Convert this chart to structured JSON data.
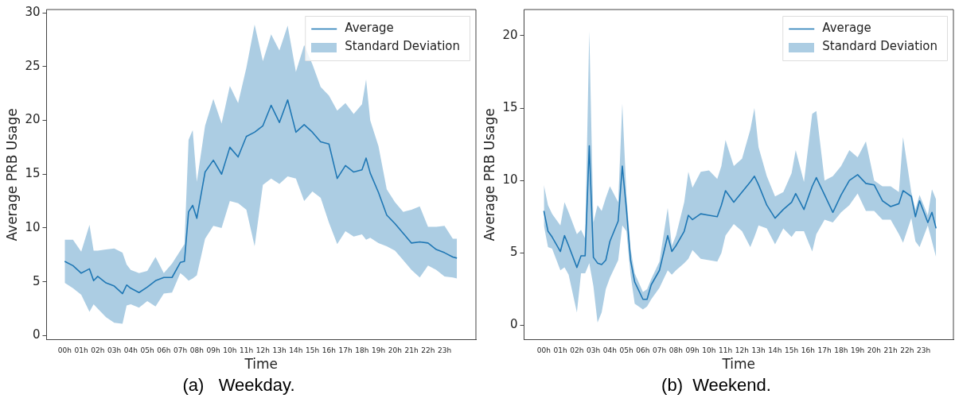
{
  "chart_data": [
    {
      "type": "line",
      "title": "(a)   Weekday.",
      "xlabel": "Time",
      "ylabel": "Average PRB Usage",
      "x": [
        0,
        0.5,
        1,
        1.5,
        1.75,
        2,
        2.5,
        3,
        3.5,
        3.75,
        4,
        4.5,
        5,
        5.5,
        6,
        6.5,
        7,
        7.25,
        7.5,
        7.75,
        8,
        8.5,
        9,
        9.5,
        10,
        10.5,
        11,
        11.5,
        12,
        12.5,
        13,
        13.5,
        14,
        14.5,
        15,
        15.5,
        16,
        16.5,
        17,
        17.5,
        18,
        18.25,
        18.5,
        19,
        19.5,
        20,
        20.5,
        21,
        21.5,
        22,
        22.5,
        23,
        23.5,
        23.75
      ],
      "series": [
        {
          "name": "Average",
          "color": "#1f77b4",
          "values": [
            6.9,
            6.5,
            5.8,
            6.2,
            5.1,
            5.5,
            4.9,
            4.6,
            3.9,
            4.7,
            4.4,
            4.0,
            4.5,
            5.1,
            5.4,
            5.4,
            6.8,
            6.9,
            11.5,
            12.1,
            10.9,
            15.2,
            16.3,
            15.0,
            17.5,
            16.6,
            18.5,
            18.9,
            19.5,
            21.4,
            19.8,
            21.9,
            18.9,
            19.6,
            18.9,
            18.0,
            17.8,
            14.6,
            15.8,
            15.2,
            15.4,
            16.5,
            15.1,
            13.3,
            11.2,
            10.4,
            9.5,
            8.6,
            8.7,
            8.6,
            8.0,
            7.7,
            7.3,
            7.2
          ],
          "lower": [
            4.9,
            4.4,
            3.8,
            2.2,
            2.9,
            2.5,
            1.7,
            1.2,
            1.1,
            2.8,
            2.9,
            2.6,
            3.2,
            2.7,
            3.9,
            4.0,
            5.8,
            5.5,
            5.1,
            5.3,
            5.6,
            9.0,
            10.2,
            10.0,
            12.5,
            12.3,
            11.7,
            8.3,
            14.0,
            14.6,
            14.1,
            14.8,
            14.6,
            12.5,
            13.4,
            12.8,
            10.5,
            8.5,
            9.7,
            9.2,
            9.4,
            8.9,
            9.1,
            8.6,
            8.3,
            7.9,
            7.0,
            6.1,
            5.4,
            6.5,
            6.1,
            5.5,
            5.4,
            5.3
          ],
          "upper": [
            8.9,
            8.9,
            7.8,
            10.3,
            7.9,
            7.9,
            8.0,
            8.1,
            7.7,
            6.6,
            6.1,
            5.8,
            6.0,
            7.3,
            5.8,
            6.7,
            7.9,
            8.5,
            18.2,
            19.1,
            14.3,
            19.5,
            22.0,
            19.7,
            23.2,
            21.6,
            24.9,
            28.9,
            25.5,
            28.0,
            26.5,
            28.8,
            24.5,
            27.0,
            25.2,
            23.1,
            22.3,
            20.9,
            21.6,
            20.6,
            21.5,
            23.8,
            20.0,
            17.6,
            13.6,
            12.4,
            11.5,
            11.7,
            12.0,
            10.1,
            10.1,
            10.2,
            9.0,
            9.0
          ]
        }
      ],
      "annotations": [
        "Standard Deviation"
      ],
      "xlim": [
        -1.1,
        24.9
      ],
      "ylim": [
        -0.4,
        30.3
      ],
      "xticks": [
        {
          "value": 0,
          "label": "00h"
        },
        {
          "value": 1,
          "label": "01h"
        },
        {
          "value": 2,
          "label": "02h"
        },
        {
          "value": 3,
          "label": "03h"
        },
        {
          "value": 4,
          "label": "04h"
        },
        {
          "value": 5,
          "label": "05h"
        },
        {
          "value": 6,
          "label": "06h"
        },
        {
          "value": 7,
          "label": "07h"
        },
        {
          "value": 8,
          "label": "08h"
        },
        {
          "value": 9,
          "label": "09h"
        },
        {
          "value": 10,
          "label": "10h"
        },
        {
          "value": 11,
          "label": "11h"
        },
        {
          "value": 12,
          "label": "12h"
        },
        {
          "value": 13,
          "label": "13h"
        },
        {
          "value": 14,
          "label": "14h"
        },
        {
          "value": 15,
          "label": "15h"
        },
        {
          "value": 16,
          "label": "16h"
        },
        {
          "value": 17,
          "label": "17h"
        },
        {
          "value": 18,
          "label": "18h"
        },
        {
          "value": 19,
          "label": "19h"
        },
        {
          "value": 20,
          "label": "20h"
        },
        {
          "value": 21,
          "label": "21h"
        },
        {
          "value": 22,
          "label": "22h"
        },
        {
          "value": 23,
          "label": "23h"
        }
      ],
      "yticks": [
        0,
        5,
        10,
        15,
        20,
        25,
        30
      ],
      "legend": "top right",
      "grid": false
    },
    {
      "type": "line",
      "title": "(b)  Weekend.",
      "xlabel": "Time",
      "ylabel": "Average PRB Usage",
      "x": [
        0,
        0.25,
        0.5,
        1,
        1.25,
        1.5,
        2,
        2.25,
        2.5,
        2.75,
        3,
        3.25,
        3.5,
        3.75,
        4,
        4.5,
        4.75,
        5,
        5.25,
        5.5,
        6,
        6.25,
        6.5,
        7,
        7.5,
        7.75,
        8,
        8.5,
        8.75,
        9,
        9.5,
        10,
        10.5,
        10.75,
        11,
        11.5,
        12,
        12.5,
        12.75,
        13,
        13.5,
        14,
        14.5,
        15,
        15.25,
        15.75,
        16.25,
        16.5,
        17,
        17.5,
        18,
        18.5,
        19,
        19.5,
        20,
        20.5,
        21,
        21.5,
        21.75,
        22.25,
        22.5,
        22.75,
        23.25,
        23.5,
        23.75
      ],
      "series": [
        {
          "name": "Average",
          "color": "#1f77b4",
          "values": [
            7.9,
            6.5,
            6.1,
            5.1,
            6.2,
            5.5,
            4.0,
            4.8,
            4.8,
            12.4,
            4.7,
            4.3,
            4.2,
            4.5,
            5.8,
            7.2,
            11.0,
            8.0,
            4.5,
            3.0,
            1.8,
            1.8,
            2.8,
            3.8,
            6.2,
            5.1,
            5.5,
            6.5,
            7.6,
            7.3,
            7.7,
            7.6,
            7.5,
            8.3,
            9.3,
            8.5,
            9.2,
            9.9,
            10.3,
            9.7,
            8.3,
            7.4,
            8.0,
            8.5,
            9.1,
            8.0,
            9.6,
            10.2,
            9.0,
            7.8,
            9.0,
            10.0,
            10.4,
            9.8,
            9.7,
            8.6,
            8.2,
            8.4,
            9.3,
            8.9,
            7.5,
            8.6,
            7.1,
            7.8,
            6.7
          ],
          "lower": [
            6.9,
            5.4,
            5.3,
            3.8,
            4.0,
            3.5,
            0.9,
            3.6,
            3.6,
            4.3,
            2.7,
            0.2,
            0.9,
            2.5,
            3.3,
            4.5,
            6.9,
            6.5,
            3.5,
            1.5,
            1.1,
            1.3,
            1.8,
            2.6,
            3.8,
            3.5,
            3.8,
            4.3,
            4.6,
            5.2,
            4.6,
            4.5,
            4.4,
            5.0,
            6.2,
            7.0,
            6.5,
            5.4,
            6.1,
            6.9,
            6.7,
            5.6,
            6.7,
            6.1,
            6.5,
            6.5,
            5.1,
            6.3,
            7.3,
            7.1,
            7.8,
            8.3,
            9.1,
            7.9,
            7.9,
            7.3,
            7.3,
            6.3,
            5.7,
            7.4,
            5.8,
            5.4,
            6.9,
            5.8,
            4.7
          ],
          "upper": [
            9.7,
            8.3,
            7.7,
            6.9,
            8.5,
            7.8,
            6.3,
            6.6,
            6.0,
            20.3,
            7.1,
            8.3,
            7.9,
            8.8,
            9.6,
            8.5,
            15.3,
            9.0,
            5.3,
            3.6,
            2.3,
            2.5,
            3.2,
            4.4,
            8.1,
            5.5,
            6.2,
            8.5,
            10.6,
            9.5,
            10.6,
            10.7,
            10.1,
            11.0,
            12.8,
            11.0,
            11.5,
            13.5,
            15.0,
            12.3,
            10.3,
            8.9,
            9.2,
            10.5,
            12.1,
            9.9,
            14.6,
            14.8,
            10.0,
            10.3,
            11.0,
            12.1,
            11.6,
            12.7,
            10.0,
            9.6,
            9.6,
            9.2,
            13.0,
            9.2,
            8.0,
            9.0,
            7.6,
            9.4,
            8.7
          ]
        }
      ],
      "annotations": [
        "Standard Deviation"
      ],
      "xlim": [
        -1.2,
        24.8
      ],
      "ylim": [
        -1,
        21.8
      ],
      "xticks": [
        {
          "value": 0,
          "label": "00h"
        },
        {
          "value": 1,
          "label": "01h"
        },
        {
          "value": 2,
          "label": "02h"
        },
        {
          "value": 3,
          "label": "03h"
        },
        {
          "value": 4,
          "label": "04h"
        },
        {
          "value": 5,
          "label": "05h"
        },
        {
          "value": 6,
          "label": "06h"
        },
        {
          "value": 7,
          "label": "07h"
        },
        {
          "value": 8,
          "label": "08h"
        },
        {
          "value": 9,
          "label": "09h"
        },
        {
          "value": 10,
          "label": "10h"
        },
        {
          "value": 11,
          "label": "11h"
        },
        {
          "value": 12,
          "label": "12h"
        },
        {
          "value": 13,
          "label": "13h"
        },
        {
          "value": 14,
          "label": "14h"
        },
        {
          "value": 15,
          "label": "15h"
        },
        {
          "value": 16,
          "label": "16h"
        },
        {
          "value": 17,
          "label": "17h"
        },
        {
          "value": 18,
          "label": "18h"
        },
        {
          "value": 19,
          "label": "19h"
        },
        {
          "value": 20,
          "label": "20h"
        },
        {
          "value": 21,
          "label": "21h"
        },
        {
          "value": 22,
          "label": "22h"
        },
        {
          "value": 23,
          "label": "23h"
        }
      ],
      "yticks": [
        0,
        5,
        10,
        15,
        20
      ],
      "legend": "top right",
      "grid": false
    }
  ]
}
